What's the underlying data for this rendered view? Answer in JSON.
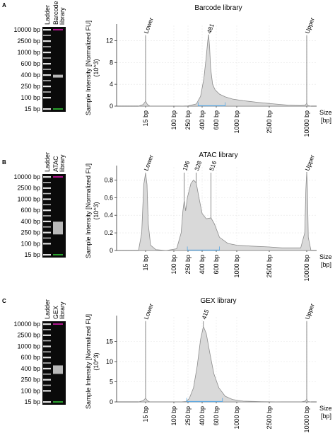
{
  "chart_data": [
    {
      "type": "area",
      "panel_letter": "A",
      "title": "Barcode library",
      "ylabel_line1": "Sample Intensity [Normalized FU]",
      "ylabel_line2": "(10^3)",
      "xlabel": "Size [bp]",
      "xlabel_line1": "Size",
      "xlabel_line2": "[bp]",
      "x_ticks": [
        "15 bp",
        "100 bp",
        "250 bp",
        "400 bp",
        "600 bp",
        "1000 bp",
        "2500 bp",
        "10000 bp"
      ],
      "y_ticks": [
        0,
        4,
        8,
        12
      ],
      "ylim": [
        0,
        14
      ],
      "peak_labels": [
        {
          "label": "Lower",
          "x": 15
        },
        {
          "label": "481",
          "x": 481
        },
        {
          "label": "Upper",
          "x": 10000
        }
      ],
      "region": [
        350,
        750
      ],
      "series": [
        {
          "x": [
            10,
            13,
            15,
            17,
            20,
            30,
            60,
            150,
            250,
            330,
            380,
            420,
            450,
            470,
            481,
            495,
            510,
            540,
            580,
            650,
            750,
            900,
            1200,
            1800,
            3000,
            5000,
            8000,
            9500,
            10000,
            10500,
            12000
          ],
          "y": [
            0,
            0.3,
            0.9,
            0.3,
            0,
            0,
            0,
            0,
            0.05,
            0.4,
            1.8,
            5,
            9,
            12,
            13.1,
            11,
            7,
            4,
            3,
            2.2,
            1.7,
            1.3,
            1,
            0.7,
            0.4,
            0.2,
            0.1,
            0.2,
            0.5,
            0.1,
            0
          ]
        }
      ]
    },
    {
      "type": "area",
      "panel_letter": "B",
      "title": "ATAC library",
      "ylabel_line1": "Sample Intensity [Normalized FU]",
      "ylabel_line2": "(10^3)",
      "xlabel": "Size [bp]",
      "xlabel_line1": "Size",
      "xlabel_line2": "[bp]",
      "x_ticks": [
        "15 bp",
        "100 bp",
        "250 bp",
        "400 bp",
        "600 bp",
        "1000 bp",
        "2500 bp",
        "10000 bp"
      ],
      "y_ticks": [
        0,
        0.2,
        0.4,
        0.6,
        0.8
      ],
      "ylim": [
        0,
        0.9
      ],
      "peak_labels": [
        {
          "label": "Lower",
          "x": 15
        },
        {
          "label": "196",
          "x": 196
        },
        {
          "label": "328",
          "x": 328
        },
        {
          "label": "516",
          "x": 516
        },
        {
          "label": "Upper",
          "x": 10000
        }
      ],
      "region": [
        240,
        650
      ],
      "series": [
        {
          "x": [
            10,
            12,
            13.5,
            15,
            16.5,
            18,
            21,
            30,
            60,
            120,
            160,
            180,
            196,
            215,
            240,
            275,
            300,
            328,
            360,
            400,
            450,
            516,
            570,
            650,
            800,
            1000,
            1500,
            2500,
            4000,
            6000,
            8000,
            9300,
            9700,
            10000,
            10300,
            10700,
            12000
          ],
          "y": [
            0,
            0.2,
            0.75,
            0.88,
            0.75,
            0.3,
            0.06,
            0.01,
            0,
            0.02,
            0.2,
            0.45,
            0.57,
            0.45,
            0.6,
            0.76,
            0.8,
            0.77,
            0.6,
            0.42,
            0.36,
            0.37,
            0.3,
            0.15,
            0.08,
            0.06,
            0.05,
            0.04,
            0.03,
            0.03,
            0.03,
            0.2,
            0.7,
            0.89,
            0.7,
            0.15,
            0
          ]
        }
      ]
    },
    {
      "type": "area",
      "panel_letter": "C",
      "title": "GEX library",
      "ylabel_line1": "Sample Intensity [Normalized FU]",
      "ylabel_line2": "(10^3)",
      "xlabel": "Size [bp]",
      "xlabel_line1": "Size",
      "xlabel_line2": "[bp]",
      "x_ticks": [
        "15 bp",
        "100 bp",
        "250 bp",
        "400 bp",
        "600 bp",
        "1000 bp",
        "2500 bp",
        "10000 bp"
      ],
      "y_ticks": [
        0,
        5,
        10,
        15
      ],
      "ylim": [
        0,
        20
      ],
      "peak_labels": [
        {
          "label": "Lower",
          "x": 15
        },
        {
          "label": "415",
          "x": 415
        },
        {
          "label": "Upper",
          "x": 10000
        }
      ],
      "region": [
        230,
        700
      ],
      "series": [
        {
          "x": [
            10,
            13,
            15,
            17,
            20,
            30,
            60,
            150,
            220,
            260,
            300,
            340,
            380,
            415,
            450,
            500,
            560,
            640,
            750,
            900,
            1200,
            2000,
            4000,
            8000,
            9500,
            10000,
            10500,
            12000
          ],
          "y": [
            0,
            0.3,
            0.9,
            0.3,
            0,
            0,
            0,
            0,
            0.1,
            0.8,
            3.5,
            9,
            15.5,
            18.7,
            17,
            12,
            7,
            3.5,
            1.4,
            0.6,
            0.2,
            0.05,
            0,
            0,
            0.2,
            0.7,
            0.1,
            0
          ]
        }
      ]
    }
  ],
  "gels": [
    {
      "header_ladder": "Ladder",
      "header_sample_line1": "Barcode",
      "header_sample_line2": "library",
      "ladder_labels": [
        "10000 bp",
        "2500 bp",
        "1000 bp",
        "600 bp",
        "400 bp",
        "250 bp",
        "100 bp",
        "15 bp"
      ],
      "upper_marker_color": "#b0178f",
      "lower_marker_color": "#2aa12e"
    },
    {
      "header_ladder": "Ladder",
      "header_sample_line1": "ATAC",
      "header_sample_line2": "library",
      "ladder_labels": [
        "10000 bp",
        "2500 bp",
        "1000 bp",
        "600 bp",
        "400 bp",
        "250 bp",
        "100 bp",
        "15 bp"
      ],
      "upper_marker_color": "#b0178f",
      "lower_marker_color": "#2aa12e"
    },
    {
      "header_ladder": "Ladder",
      "header_sample_line1": "GEX",
      "header_sample_line2": "library",
      "ladder_labels": [
        "10000 bp",
        "2500 bp",
        "1000 bp",
        "600 bp",
        "400 bp",
        "250 bp",
        "100 bp",
        "15 bp"
      ],
      "upper_marker_color": "#b0178f",
      "lower_marker_color": "#2aa12e"
    }
  ],
  "colors": {
    "area_fill": "#d9d9d9",
    "area_stroke": "#8c8c8c",
    "region_line": "#5aa6e0",
    "grid": "#e6e6e6"
  }
}
